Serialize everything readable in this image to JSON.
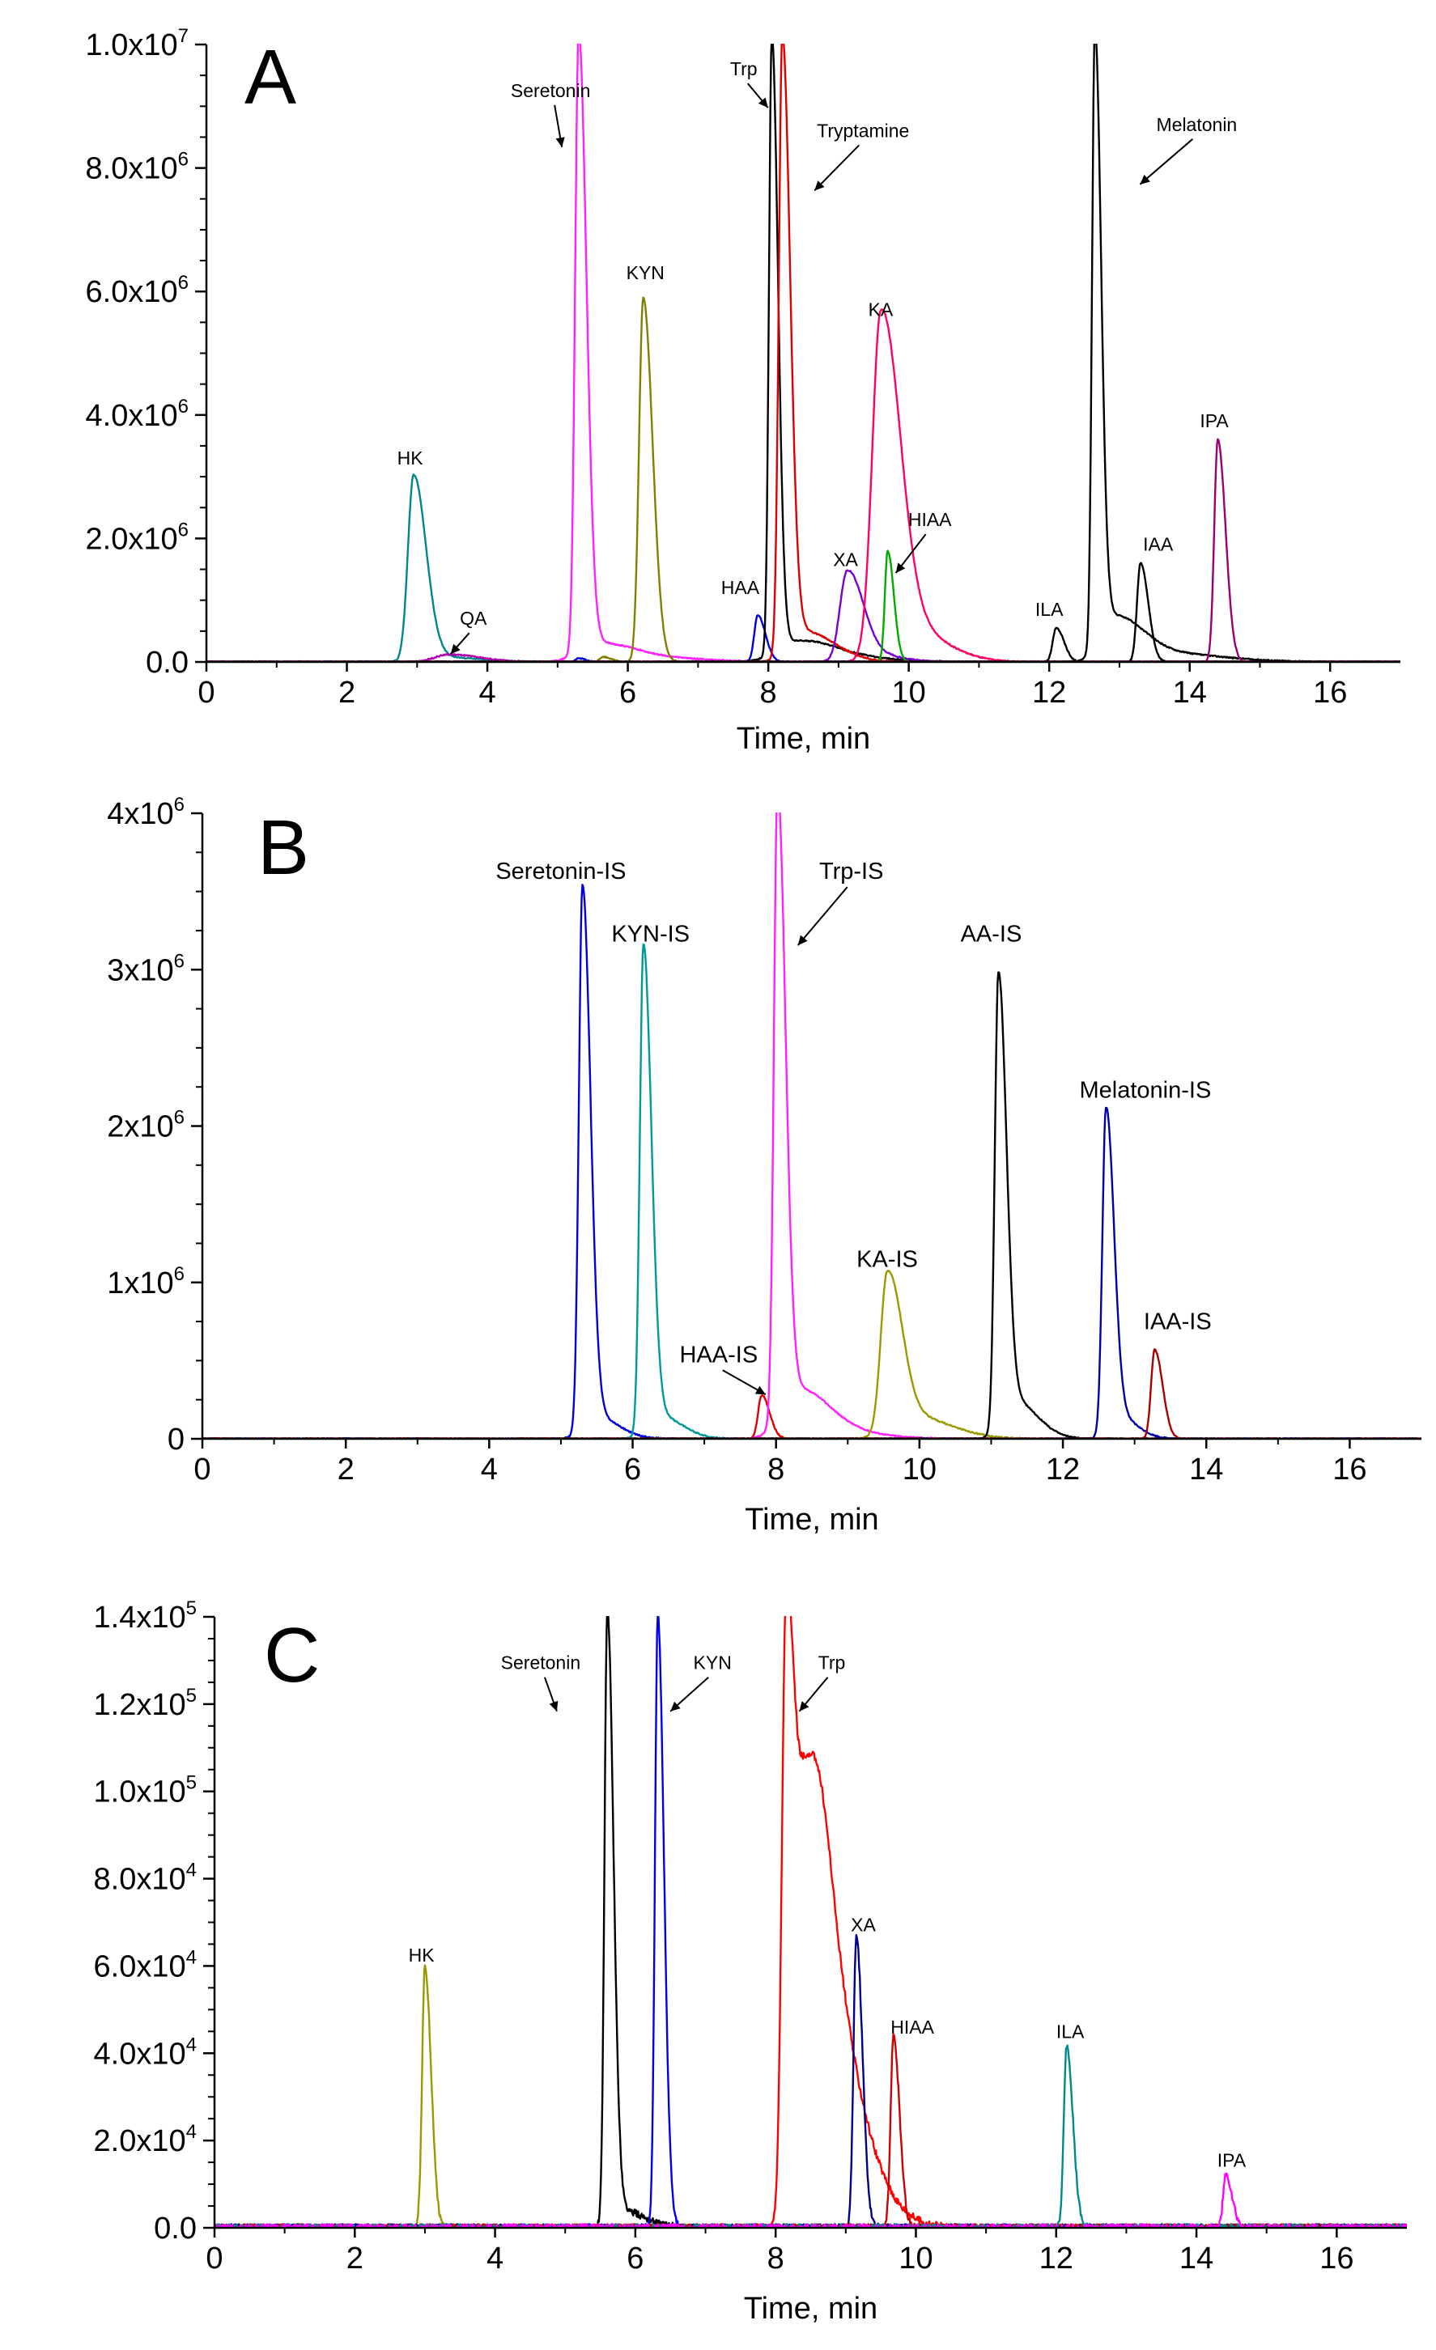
{
  "chart_data": [
    {
      "type": "line",
      "panel": "A",
      "xlabel": "Time, min",
      "ylabel": "",
      "xlim": [
        0,
        17
      ],
      "ylim": [
        0,
        10000000
      ],
      "x_ticks": [
        "0",
        "2",
        "4",
        "6",
        "8",
        "10",
        "12",
        "14",
        "16"
      ],
      "y_ticks": [
        {
          "base": "0.0",
          "exp": ""
        },
        {
          "base": "2.0x10",
          "exp": "6"
        },
        {
          "base": "4.0x10",
          "exp": "6"
        },
        {
          "base": "6.0x10",
          "exp": "6"
        },
        {
          "base": "8.0x10",
          "exp": "6"
        },
        {
          "base": "1.0x10",
          "exp": "7"
        }
      ],
      "series": [
        {
          "name": "HK",
          "color": "#00868b",
          "peaks": [
            [
              2.95,
              3000000,
              0.08
            ],
            [
              3.3,
              80000,
              0.25
            ]
          ]
        },
        {
          "name": "QA",
          "color": "#b000b0",
          "peaks": [
            [
              3.45,
              120000,
              0.2
            ]
          ]
        },
        {
          "name": "Seretonin",
          "color": "#ff22ff",
          "peaks": [
            [
              5.3,
              10000000,
              0.05
            ],
            [
              5.5,
              300000,
              0.22
            ],
            [
              6.2,
              80000,
              0.35
            ]
          ]
        },
        {
          "name": "KYN",
          "color": "#808000",
          "peaks": [
            [
              6.22,
              5900000,
              0.06
            ],
            [
              5.65,
              80000,
              0.05
            ]
          ]
        },
        {
          "name": "HAA",
          "color": "#0000dd",
          "peaks": [
            [
              7.85,
              750000,
              0.05
            ],
            [
              5.3,
              60000,
              0.04
            ]
          ]
        },
        {
          "name": "Trp",
          "color": "#000000",
          "peaks": [
            [
              8.05,
              10000000,
              0.04
            ],
            [
              8.35,
              300000,
              0.25
            ],
            [
              8.8,
              80000,
              0.35
            ]
          ]
        },
        {
          "name": "Tryptamine",
          "color": "#dd0000",
          "peaks": [
            [
              8.2,
              10000000,
              0.05
            ],
            [
              8.5,
              500000,
              0.2
            ]
          ]
        },
        {
          "name": "XA",
          "color": "#7a00d0",
          "peaks": [
            [
              9.12,
              1400000,
              0.1
            ],
            [
              9.35,
              150000,
              0.2
            ]
          ]
        },
        {
          "name": "KA",
          "color": "#ff0066",
          "peaks": [
            [
              9.6,
              5400000,
              0.12
            ],
            [
              9.9,
              600000,
              0.25
            ]
          ]
        },
        {
          "name": "HIAA",
          "color": "#00aa00",
          "peaks": [
            [
              9.7,
              1800000,
              0.04
            ]
          ]
        },
        {
          "name": "ILA",
          "color": "#000000",
          "peaks": [
            [
              12.1,
              550000,
              0.05
            ]
          ]
        },
        {
          "name": "Melatonin",
          "color": "#000000",
          "peaks": [
            [
              12.65,
              10000000,
              0.04
            ],
            [
              12.9,
              700000,
              0.18
            ],
            [
              13.5,
              150000,
              0.4
            ]
          ]
        },
        {
          "name": "IAA",
          "color": "#000000",
          "peaks": [
            [
              13.3,
              1600000,
              0.05
            ]
          ]
        },
        {
          "name": "IPA",
          "color": "#9a0070",
          "peaks": [
            [
              14.4,
              3600000,
              0.05
            ]
          ]
        }
      ],
      "annotations": [
        {
          "text": "HK",
          "x": 2.9,
          "y": 3200000
        },
        {
          "text": "QA",
          "x": 3.8,
          "y": 600000
        },
        {
          "text": "Seretonin",
          "x": 4.9,
          "y": 9150000
        },
        {
          "text": "KYN",
          "x": 6.25,
          "y": 6200000
        },
        {
          "text": "HAA",
          "x": 7.6,
          "y": 1100000
        },
        {
          "text": "Trp",
          "x": 7.65,
          "y": 9500000
        },
        {
          "text": "Tryptamine",
          "x": 9.35,
          "y": 8500000
        },
        {
          "text": "XA",
          "x": 9.1,
          "y": 1550000
        },
        {
          "text": "KA",
          "x": 9.6,
          "y": 5600000
        },
        {
          "text": "HIAA",
          "x": 10.3,
          "y": 2200000
        },
        {
          "text": "ILA",
          "x": 12.0,
          "y": 750000
        },
        {
          "text": "Melatonin",
          "x": 14.1,
          "y": 8600000
        },
        {
          "text": "IAA",
          "x": 13.55,
          "y": 1800000
        },
        {
          "text": "IPA",
          "x": 14.35,
          "y": 3800000
        }
      ]
    },
    {
      "type": "line",
      "panel": "B",
      "xlabel": "Time, min",
      "ylabel": "",
      "xlim": [
        0,
        17
      ],
      "ylim": [
        0,
        4000000
      ],
      "x_ticks": [
        "0",
        "2",
        "4",
        "6",
        "8",
        "10",
        "12",
        "14",
        "16"
      ],
      "y_ticks": [
        {
          "base": "0",
          "exp": ""
        },
        {
          "base": "1x10",
          "exp": "6"
        },
        {
          "base": "2x10",
          "exp": "6"
        },
        {
          "base": "3x10",
          "exp": "6"
        },
        {
          "base": "4x10",
          "exp": "6"
        }
      ],
      "series": [
        {
          "name": "Seretonin-IS",
          "color": "#0000dd",
          "peaks": [
            [
              5.3,
              3450000,
              0.05
            ],
            [
              5.45,
              150000,
              0.15
            ]
          ]
        },
        {
          "name": "KYN-IS",
          "color": "#009999",
          "peaks": [
            [
              6.15,
              3100000,
              0.05
            ],
            [
              6.35,
              150000,
              0.15
            ]
          ]
        },
        {
          "name": "HAA-IS",
          "color": "#dd0000",
          "peaks": [
            [
              7.8,
              280000,
              0.05
            ]
          ]
        },
        {
          "name": "Trp-IS",
          "color": "#ff22ff",
          "peaks": [
            [
              8.02,
              4000000,
              0.05
            ],
            [
              8.25,
              300000,
              0.2
            ],
            [
              8.7,
              50000,
              0.3
            ]
          ]
        },
        {
          "name": "KA-IS",
          "color": "#999900",
          "peaks": [
            [
              9.55,
              1000000,
              0.09
            ],
            [
              9.85,
              150000,
              0.25
            ]
          ]
        },
        {
          "name": "AA-IS",
          "color": "#000000",
          "peaks": [
            [
              11.1,
              2880000,
              0.05
            ],
            [
              11.3,
              250000,
              0.15
            ]
          ]
        },
        {
          "name": "Melatonin-IS",
          "color": "#0000aa",
          "peaks": [
            [
              12.6,
              2050000,
              0.05
            ],
            [
              12.75,
              150000,
              0.12
            ]
          ]
        },
        {
          "name": "IAA-IS",
          "color": "#aa0000",
          "peaks": [
            [
              13.28,
              570000,
              0.05
            ]
          ]
        }
      ],
      "annotations": [
        {
          "text": "Seretonin-IS",
          "x": 5.0,
          "y": 3580000
        },
        {
          "text": "KYN-IS",
          "x": 6.25,
          "y": 3180000
        },
        {
          "text": "HAA-IS",
          "x": 7.2,
          "y": 490000
        },
        {
          "text": "Trp-IS",
          "x": 9.05,
          "y": 3580000
        },
        {
          "text": "KA-IS",
          "x": 9.55,
          "y": 1100000
        },
        {
          "text": "AA-IS",
          "x": 11.0,
          "y": 3180000
        },
        {
          "text": "Melatonin-IS",
          "x": 13.15,
          "y": 2180000
        },
        {
          "text": "IAA-IS",
          "x": 13.6,
          "y": 700000
        }
      ]
    },
    {
      "type": "line",
      "panel": "C",
      "xlabel": "Time, min",
      "ylabel": "",
      "xlim": [
        0,
        17
      ],
      "ylim": [
        0,
        140000
      ],
      "x_ticks": [
        "0",
        "2",
        "4",
        "6",
        "8",
        "10",
        "12",
        "14",
        "16"
      ],
      "y_ticks": [
        {
          "base": "0.0",
          "exp": ""
        },
        {
          "base": "2.0x10",
          "exp": "4"
        },
        {
          "base": "4.0x10",
          "exp": "4"
        },
        {
          "base": "6.0x10",
          "exp": "4"
        },
        {
          "base": "8.0x10",
          "exp": "4"
        },
        {
          "base": "1.0x10",
          "exp": "5"
        },
        {
          "base": "1.2x10",
          "exp": "5"
        },
        {
          "base": "1.4x10",
          "exp": "5"
        }
      ],
      "series": [
        {
          "name": "HK",
          "color": "#999900",
          "peaks": [
            [
              3.0,
              60000,
              0.04
            ]
          ]
        },
        {
          "name": "Seretonin",
          "color": "#000000",
          "peaks": [
            [
              5.6,
              140000,
              0.04
            ],
            [
              5.8,
              4000,
              0.15
            ]
          ]
        },
        {
          "name": "KYN",
          "color": "#0000ee",
          "peaks": [
            [
              6.32,
              140000,
              0.04
            ]
          ]
        },
        {
          "name": "Trp",
          "color": "#ff0000",
          "peaks": [
            [
              8.15,
              140000,
              0.06
            ],
            [
              8.45,
              60000,
              0.12
            ],
            [
              8.6,
              40000,
              0.2
            ],
            [
              8.8,
              20000,
              0.25
            ]
          ]
        },
        {
          "name": "XA",
          "color": "#00008b",
          "peaks": [
            [
              9.15,
              67000,
              0.04
            ]
          ]
        },
        {
          "name": "HIAA",
          "color": "#cc0000",
          "peaks": [
            [
              9.68,
              44000,
              0.04
            ]
          ]
        },
        {
          "name": "ILA",
          "color": "#008b8b",
          "peaks": [
            [
              12.15,
              42000,
              0.04
            ]
          ]
        },
        {
          "name": "IPA",
          "color": "#ff00ff",
          "peaks": [
            [
              14.42,
              12000,
              0.04
            ]
          ]
        }
      ],
      "annotations": [
        {
          "text": "HK",
          "x": 2.95,
          "y": 61000
        },
        {
          "text": "Seretonin",
          "x": 4.65,
          "y": 128000
        },
        {
          "text": "KYN",
          "x": 7.1,
          "y": 128000
        },
        {
          "text": "Trp",
          "x": 8.8,
          "y": 128000
        },
        {
          "text": "XA",
          "x": 9.25,
          "y": 68000
        },
        {
          "text": "HIAA",
          "x": 9.95,
          "y": 44500
        },
        {
          "text": "ILA",
          "x": 12.2,
          "y": 43500
        },
        {
          "text": "IPA",
          "x": 14.5,
          "y": 14000
        }
      ]
    }
  ]
}
